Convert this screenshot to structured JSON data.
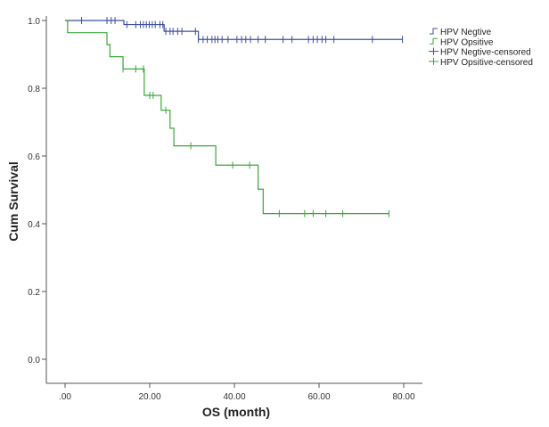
{
  "chart_data": {
    "type": "line",
    "title": "",
    "xlabel": "OS (month)",
    "ylabel": "Cum Survival",
    "xlim": [
      -3,
      84
    ],
    "ylim": [
      -0.07,
      1.04
    ],
    "xticks": [
      0,
      20,
      40,
      60,
      80
    ],
    "xtick_labels": [
      ".00",
      "20.00",
      "40.00",
      "60.00",
      "80.00"
    ],
    "yticks": [
      0,
      0.2,
      0.4,
      0.6,
      0.8,
      1.0
    ],
    "ytick_labels": [
      "0.0",
      "0.2",
      "0.4",
      "0.6",
      "0.8",
      "1.0"
    ],
    "grid": false,
    "legend_placement": "right-top",
    "legend": [
      "HPV Negtive",
      "HPV Opsitive",
      "HPV Negtive-censored",
      "HPV Opsitive-censored"
    ],
    "series": [
      {
        "name": "HPV Negtive",
        "color": "#3f4fa3",
        "steps": [
          [
            0,
            1.0
          ],
          [
            13.9,
            0.988
          ],
          [
            23.4,
            0.968
          ],
          [
            31.5,
            0.944
          ]
        ],
        "end": 79.7,
        "censored": [
          3.9,
          9.9,
          10.9,
          11.8,
          14.6,
          16.7,
          17.8,
          18.5,
          19.2,
          19.9,
          20.6,
          21.3,
          22.4,
          23.1,
          23.8,
          24.8,
          25.5,
          26.6,
          27.6,
          30.8,
          31.5,
          32.6,
          33.6,
          34.7,
          35.4,
          36.1,
          37.1,
          38.5,
          40.6,
          41.7,
          42.7,
          43.8,
          45.6,
          47.3,
          51.5,
          53.6,
          57.5,
          58.6,
          59.6,
          60.7,
          61.6,
          63.5,
          72.6,
          79.7
        ]
      },
      {
        "name": "HPV Opsitive",
        "color": "#3aa83a",
        "steps": [
          [
            0,
            1.0
          ],
          [
            0.6,
            0.964
          ],
          [
            9.9,
            0.929
          ],
          [
            10.6,
            0.893
          ],
          [
            13.7,
            0.857
          ],
          [
            18.7,
            0.779
          ],
          [
            22.7,
            0.735
          ],
          [
            24.8,
            0.682
          ],
          [
            25.7,
            0.63
          ],
          [
            35.6,
            0.573
          ],
          [
            45.6,
            0.502
          ],
          [
            46.8,
            0.43
          ]
        ],
        "end": 76.5,
        "censored": [
          13.7,
          16.7,
          18.5,
          20.0,
          20.8,
          23.8,
          29.7,
          39.6,
          43.6,
          50.6,
          56.6,
          58.6,
          61.6,
          65.6,
          76.5
        ]
      }
    ]
  }
}
